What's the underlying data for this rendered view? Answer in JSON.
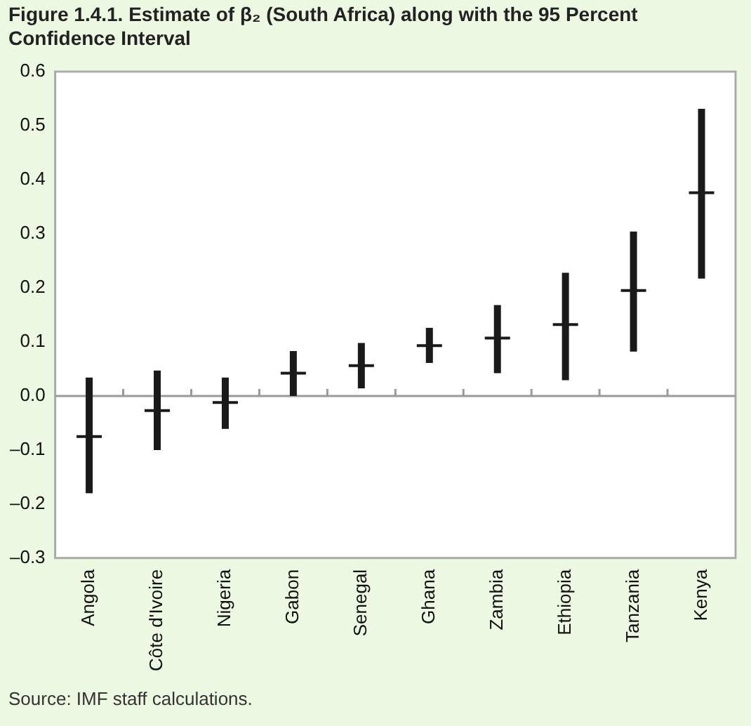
{
  "chart_data": {
    "type": "scatter",
    "title": "Figure 1.4.1. Estimate of β₂ (South Africa) along with the 95 Percent Confidence Interval",
    "categories": [
      "Angola",
      "Côte d'Ivoire",
      "Nigeria",
      "Gabon",
      "Senegal",
      "Ghana",
      "Zambia",
      "Ethiopia",
      "Tanzania",
      "Kenya"
    ],
    "series": [
      {
        "color": "#1a1a1a",
        "values": [
          -0.075,
          -0.027,
          -0.012,
          0.042,
          0.056,
          0.093,
          0.107,
          0.132,
          0.195,
          0.376
        ],
        "errors": [
          [
            -0.18,
            0.034
          ],
          [
            -0.1,
            0.047
          ],
          [
            -0.061,
            0.034
          ],
          [
            0.0,
            0.083
          ],
          [
            0.014,
            0.098
          ],
          [
            0.061,
            0.126
          ],
          [
            0.042,
            0.168
          ],
          [
            0.029,
            0.228
          ],
          [
            0.082,
            0.304
          ],
          [
            0.217,
            0.531
          ]
        ]
      }
    ],
    "ylim": [
      -0.3,
      0.6
    ],
    "yticks": [
      {
        "value": -0.3,
        "label": "–0.3"
      },
      {
        "value": -0.2,
        "label": "–0.2"
      },
      {
        "value": -0.1,
        "label": "–0.1"
      },
      {
        "value": 0,
        "label": "0.0"
      },
      {
        "value": 0.1,
        "label": "0.1"
      },
      {
        "value": 0.2,
        "label": "0.2"
      },
      {
        "value": 0.3,
        "label": "0.3"
      },
      {
        "value": 0.4,
        "label": "0.4"
      },
      {
        "value": 0.5,
        "label": "0.5"
      },
      {
        "value": 0.6,
        "label": "0.6"
      }
    ],
    "ref_lines": [
      {
        "axis": "y",
        "value": 0,
        "color": "#9a9a9a"
      }
    ],
    "grid": false,
    "legend": false,
    "marker": "cross",
    "annotations": [
      "Source: IMF staff calculations."
    ]
  }
}
